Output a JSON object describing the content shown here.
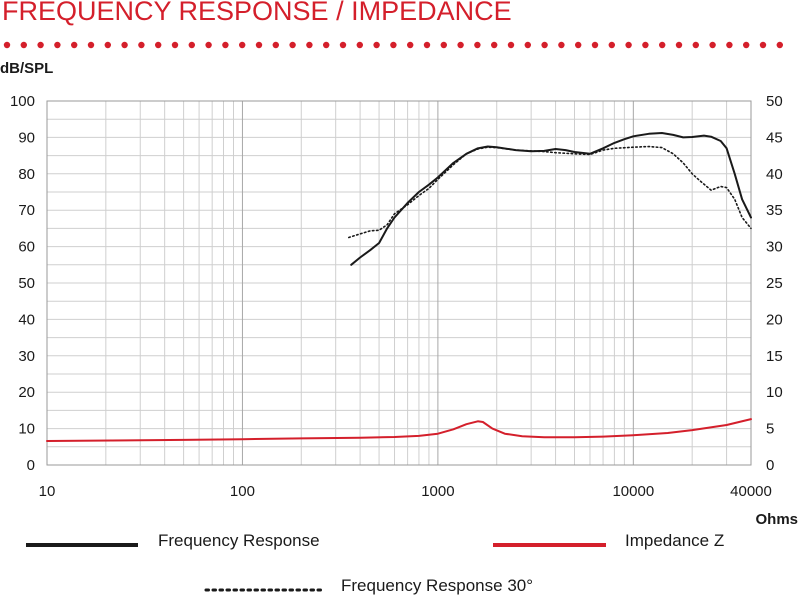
{
  "header": {
    "title": "FREQUENCY RESPONSE / IMPEDANCE"
  },
  "chart_data": {
    "type": "line",
    "title": "FREQUENCY RESPONSE / IMPEDANCE",
    "xlabel": "Ohms",
    "ylabel": "dB/SPL",
    "xscale": "log",
    "xlim": [
      10,
      40000
    ],
    "ylim": [
      0,
      100
    ],
    "y2lim": [
      0,
      50
    ],
    "x_ticks": [
      "10",
      "100",
      "1000",
      "10000",
      "40000"
    ],
    "y_ticks": [
      "0",
      "10",
      "20",
      "30",
      "40",
      "50",
      "60",
      "70",
      "80",
      "90",
      "100"
    ],
    "y2_ticks": [
      "0",
      "5",
      "10",
      "15",
      "20",
      "25",
      "30",
      "35",
      "40",
      "45",
      "50"
    ],
    "grid": true,
    "legend_position": "bottom",
    "series": [
      {
        "name": "Frequency Response",
        "color": "#1a1a1a",
        "style": "solid",
        "axis": "left",
        "points": [
          [
            360,
            55
          ],
          [
            400,
            57
          ],
          [
            450,
            59
          ],
          [
            500,
            61
          ],
          [
            550,
            65
          ],
          [
            600,
            68
          ],
          [
            700,
            72
          ],
          [
            800,
            75
          ],
          [
            900,
            77
          ],
          [
            1000,
            79
          ],
          [
            1200,
            83
          ],
          [
            1400,
            85.5
          ],
          [
            1600,
            87
          ],
          [
            1800,
            87.5
          ],
          [
            2000,
            87.3
          ],
          [
            2500,
            86.5
          ],
          [
            3000,
            86.2
          ],
          [
            3500,
            86.3
          ],
          [
            4000,
            86.8
          ],
          [
            4500,
            86.5
          ],
          [
            5000,
            86
          ],
          [
            6000,
            85.5
          ],
          [
            7000,
            87
          ],
          [
            8000,
            88.5
          ],
          [
            9000,
            89.5
          ],
          [
            10000,
            90.3
          ],
          [
            12000,
            91
          ],
          [
            14000,
            91.2
          ],
          [
            16000,
            90.7
          ],
          [
            18000,
            90
          ],
          [
            20000,
            90.1
          ],
          [
            23000,
            90.5
          ],
          [
            25000,
            90.2
          ],
          [
            28000,
            89
          ],
          [
            30000,
            87
          ],
          [
            33000,
            80
          ],
          [
            36000,
            73
          ],
          [
            40000,
            68
          ]
        ]
      },
      {
        "name": "Frequency Response 30°",
        "color": "#1a1a1a",
        "style": "dotted",
        "axis": "left",
        "points": [
          [
            350,
            62.5
          ],
          [
            400,
            63.5
          ],
          [
            450,
            64.3
          ],
          [
            500,
            64.5
          ],
          [
            550,
            66
          ],
          [
            600,
            69
          ],
          [
            700,
            71.5
          ],
          [
            800,
            74
          ],
          [
            900,
            76
          ],
          [
            1000,
            78.5
          ],
          [
            1200,
            82.5
          ],
          [
            1400,
            85.5
          ],
          [
            1600,
            86.8
          ],
          [
            1800,
            87.3
          ],
          [
            2000,
            87.2
          ],
          [
            2500,
            86.5
          ],
          [
            3000,
            86.3
          ],
          [
            3500,
            86.1
          ],
          [
            4000,
            85.8
          ],
          [
            5000,
            85.5
          ],
          [
            6000,
            85.3
          ],
          [
            7000,
            86.5
          ],
          [
            8000,
            87
          ],
          [
            10000,
            87.3
          ],
          [
            12000,
            87.5
          ],
          [
            14000,
            87.2
          ],
          [
            16000,
            85.5
          ],
          [
            18000,
            83
          ],
          [
            20000,
            80
          ],
          [
            22000,
            78
          ],
          [
            25000,
            75.5
          ],
          [
            28000,
            76.5
          ],
          [
            30000,
            76.2
          ],
          [
            33000,
            73
          ],
          [
            36000,
            68
          ],
          [
            40000,
            65
          ]
        ]
      },
      {
        "name": "Impedance Z",
        "color": "#d41f2b",
        "style": "solid",
        "axis": "right",
        "points": [
          [
            10,
            3.3
          ],
          [
            50,
            3.45
          ],
          [
            100,
            3.55
          ],
          [
            200,
            3.65
          ],
          [
            400,
            3.75
          ],
          [
            600,
            3.85
          ],
          [
            800,
            4
          ],
          [
            1000,
            4.3
          ],
          [
            1200,
            4.9
          ],
          [
            1400,
            5.6
          ],
          [
            1600,
            6
          ],
          [
            1700,
            5.9
          ],
          [
            1900,
            5
          ],
          [
            2200,
            4.3
          ],
          [
            2700,
            3.95
          ],
          [
            3500,
            3.8
          ],
          [
            5000,
            3.8
          ],
          [
            7000,
            3.9
          ],
          [
            10000,
            4.1
          ],
          [
            15000,
            4.4
          ],
          [
            20000,
            4.8
          ],
          [
            30000,
            5.5
          ],
          [
            40000,
            6.3
          ]
        ]
      }
    ]
  }
}
